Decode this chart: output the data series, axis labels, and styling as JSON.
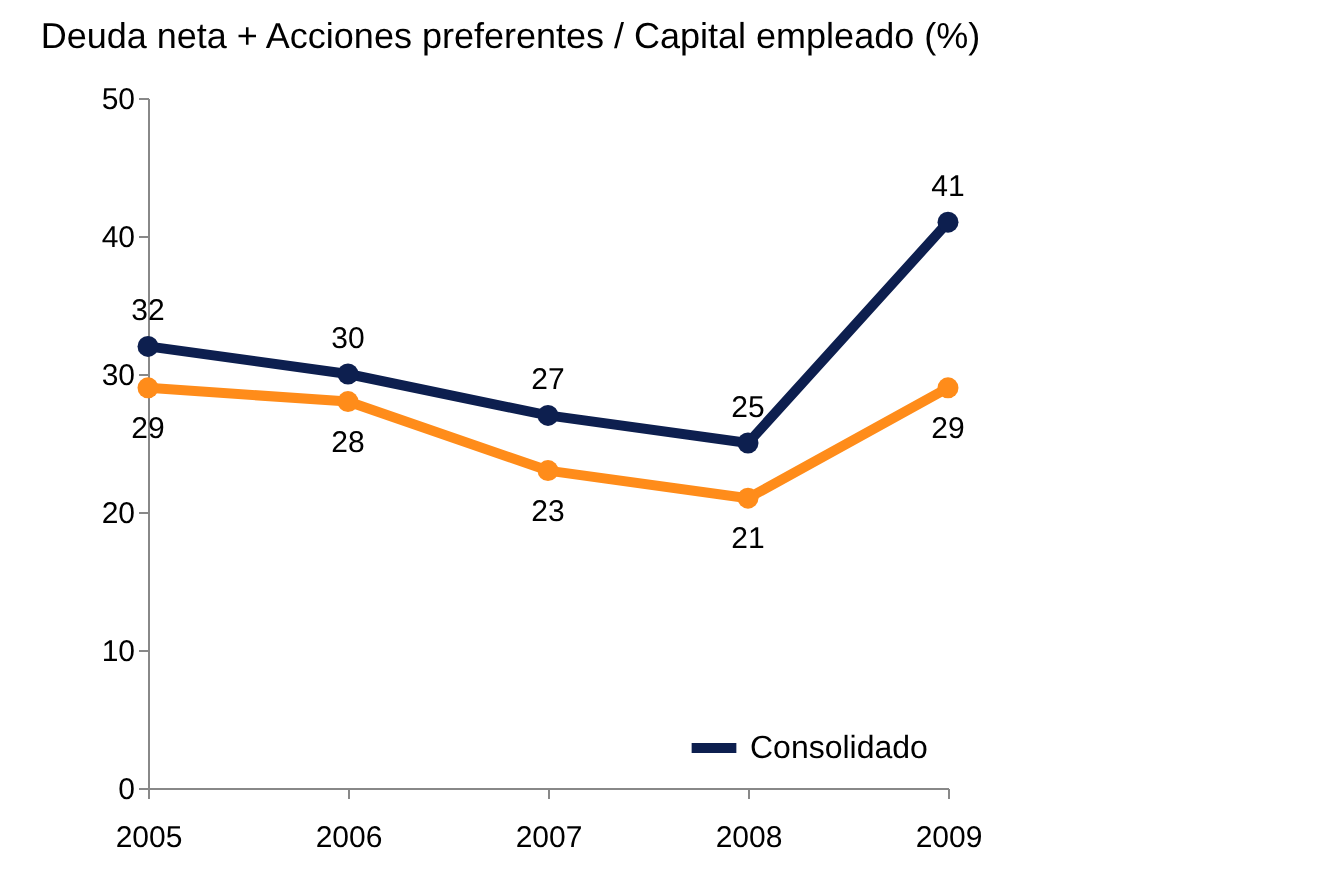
{
  "chart_data": {
    "type": "line",
    "title": "Deuda neta + Acciones preferentes  / Capital empleado (%)",
    "categories": [
      "2005",
      "2006",
      "2007",
      "2008",
      "2009"
    ],
    "series": [
      {
        "name": "Consolidado",
        "color": "#0d1f4f",
        "values": [
          32,
          30,
          27,
          25,
          41
        ]
      },
      {
        "color": "#ff8c1a",
        "values": [
          29,
          28,
          23,
          21,
          29
        ]
      }
    ],
    "ylim": [
      0,
      50
    ],
    "yticks": [
      0,
      10,
      20,
      30,
      40,
      50
    ],
    "grid": false,
    "legend": "bottom right",
    "marker": "circle",
    "line_style": "solid",
    "data_labels": true
  }
}
